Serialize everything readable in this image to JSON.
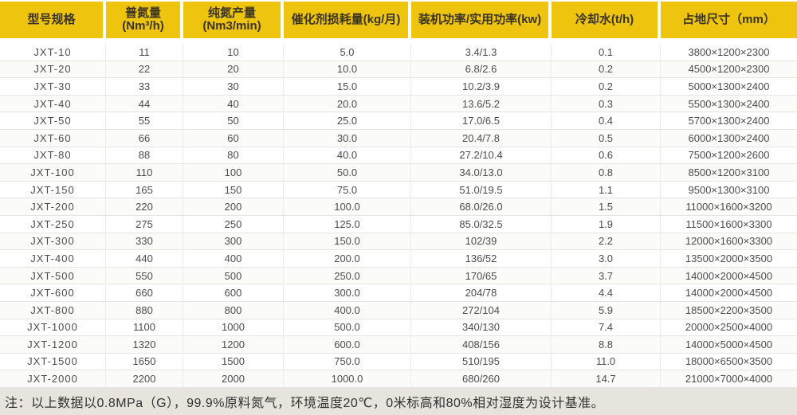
{
  "colors": {
    "header_bg": "#eec40f",
    "header_text": "#3b3421",
    "body_text": "#4c4c4e",
    "grid_line": "#e5e5e2",
    "footer_bg": "#e7e4de"
  },
  "table": {
    "columns": [
      {
        "label": "型号规格"
      },
      {
        "label": "普氮量(Nm³/h)"
      },
      {
        "label": "纯氮产量(Nm3/min)"
      },
      {
        "label": "催化剂损耗量(kg/月)"
      },
      {
        "label": "装机功率/实用功率(kw)"
      },
      {
        "label": "冷却水(t/h)"
      },
      {
        "label": "占地尺寸（mm）"
      }
    ],
    "rows": [
      [
        "JXT-10",
        "11",
        "10",
        "5.0",
        "3.4/1.3",
        "0.1",
        "3800×1200×2300"
      ],
      [
        "JXT-20",
        "22",
        "20",
        "10.0",
        "6.8/2.6",
        "0.2",
        "4500×1200×2300"
      ],
      [
        "JXT-30",
        "33",
        "30",
        "15.0",
        "10.2/3.9",
        "0.2",
        "5000×1300×2400"
      ],
      [
        "JXT-40",
        "44",
        "40",
        "20.0",
        "13.6/5.2",
        "0.3",
        "5500×1300×2400"
      ],
      [
        "JXT-50",
        "55",
        "50",
        "25.0",
        "17.0/6.5",
        "0.4",
        "5700×1300×2400"
      ],
      [
        "JXT-60",
        "66",
        "60",
        "30.0",
        "20.4/7.8",
        "0.5",
        "6000×1300×2400"
      ],
      [
        "JXT-80",
        "88",
        "80",
        "40.0",
        "27.2/10.4",
        "0.6",
        "7500×1200×2600"
      ],
      [
        "JXT-100",
        "110",
        "100",
        "50.0",
        "34.0/13.0",
        "0.8",
        "8500×1200×3100"
      ],
      [
        "JXT-150",
        "165",
        "150",
        "75.0",
        "51.0/19.5",
        "1.1",
        "9500×1300×3100"
      ],
      [
        "JXT-200",
        "220",
        "200",
        "100.0",
        "68.0/26.0",
        "1.5",
        "11000×1600×3200"
      ],
      [
        "JXT-250",
        "275",
        "250",
        "125.0",
        "85.0/32.5",
        "1.9",
        "11500×1600×3300"
      ],
      [
        "JXT-300",
        "330",
        "300",
        "150.0",
        "102/39",
        "2.2",
        "12000×1600×3300"
      ],
      [
        "JXT-400",
        "440",
        "400",
        "200.0",
        "136/52",
        "3.0",
        "13500×2000×3500"
      ],
      [
        "JXT-500",
        "550",
        "500",
        "250.0",
        "170/65",
        "3.7",
        "14000×2000×4500"
      ],
      [
        "JXT-600",
        "660",
        "600",
        "300.0",
        "204/78",
        "4.4",
        "14000×2000×4500"
      ],
      [
        "JXT-800",
        "880",
        "800",
        "400.0",
        "272/104",
        "5.9",
        "18500×2200×3500"
      ],
      [
        "JXT-1000",
        "1100",
        "1000",
        "500.0",
        "340/130",
        "7.4",
        "20000×2500×4000"
      ],
      [
        "JXT-1200",
        "1320",
        "1200",
        "600.0",
        "408/156",
        "8.8",
        "14000×5000×4500"
      ],
      [
        "JXT-1500",
        "1650",
        "1500",
        "750.0",
        "510/195",
        "11.0",
        "18000×6500×3500"
      ],
      [
        "JXT-2000",
        "2200",
        "2000",
        "1000.0",
        "680/260",
        "14.7",
        "21000×7000×4000"
      ]
    ]
  },
  "footer": {
    "note": "注：以上数据以0.8MPa（G），99.9%原料氮气，环境温度20℃，0米标高和80%相对湿度为设计基准。"
  }
}
